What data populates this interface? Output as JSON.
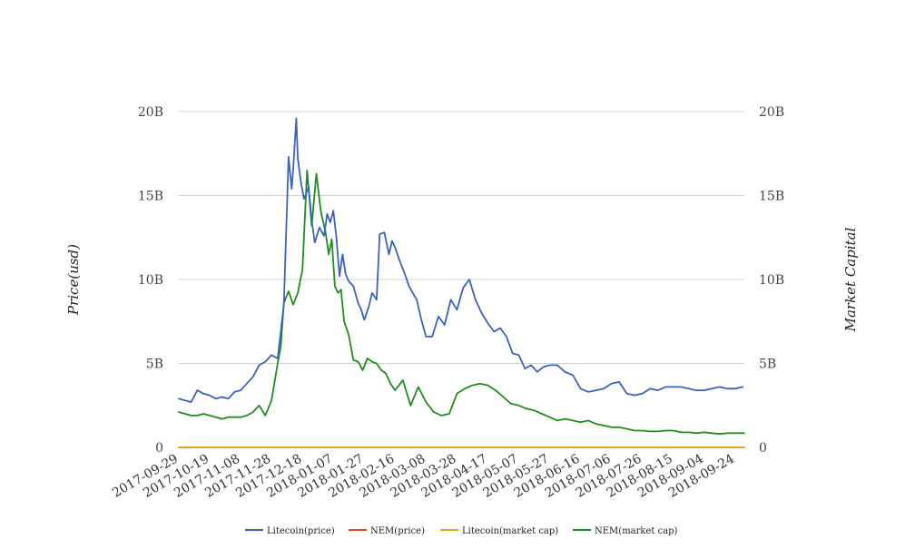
{
  "chart_data": {
    "type": "line",
    "y_axis_left_title": "Price(usd)",
    "y_axis_right_title": "Market Capital",
    "y_ticks": [
      "0",
      "5B",
      "10B",
      "15B",
      "20B"
    ],
    "ylim": [
      0,
      20000000000
    ],
    "x_range": [
      "2017-09-29",
      "2018-09-30"
    ],
    "x_ticks": [
      "2017-09-29",
      "2017-10-19",
      "2017-11-08",
      "2017-11-28",
      "2017-12-18",
      "2018-01-07",
      "2018-01-27",
      "2018-02-16",
      "2018-03-08",
      "2018-03-28",
      "2018-04-17",
      "2018-05-07",
      "2018-05-27",
      "2018-06-16",
      "2018-07-06",
      "2018-07-26",
      "2018-08-15",
      "2018-09-04",
      "2018-09-24"
    ],
    "grid": true,
    "legend_position": "bottom",
    "series": [
      {
        "name": "Litecoin(price)",
        "color": "#3a63c0",
        "axis": "left",
        "x": [
          "2017-09-29",
          "2017-10-03",
          "2017-10-07",
          "2017-10-11",
          "2017-10-15",
          "2017-10-19",
          "2017-10-23",
          "2017-10-27",
          "2017-10-31",
          "2017-11-04",
          "2017-11-08",
          "2017-11-12",
          "2017-11-16",
          "2017-11-20",
          "2017-11-24",
          "2017-11-28",
          "2017-12-02",
          "2017-12-06",
          "2017-12-09",
          "2017-12-11",
          "2017-12-12",
          "2017-12-14",
          "2017-12-15",
          "2017-12-17",
          "2017-12-19",
          "2017-12-22",
          "2017-12-24",
          "2017-12-26",
          "2017-12-29",
          "2018-01-01",
          "2018-01-03",
          "2018-01-05",
          "2018-01-07",
          "2018-01-09",
          "2018-01-11",
          "2018-01-13",
          "2018-01-15",
          "2018-01-17",
          "2018-01-20",
          "2018-01-23",
          "2018-01-25",
          "2018-01-27",
          "2018-01-30",
          "2018-02-01",
          "2018-02-04",
          "2018-02-06",
          "2018-02-09",
          "2018-02-12",
          "2018-02-14",
          "2018-02-16",
          "2018-02-19",
          "2018-02-22",
          "2018-02-25",
          "2018-02-28",
          "2018-03-02",
          "2018-03-05",
          "2018-03-08",
          "2018-03-12",
          "2018-03-16",
          "2018-03-20",
          "2018-03-24",
          "2018-03-28",
          "2018-04-01",
          "2018-04-05",
          "2018-04-09",
          "2018-04-13",
          "2018-04-17",
          "2018-04-21",
          "2018-04-25",
          "2018-04-29",
          "2018-05-03",
          "2018-05-07",
          "2018-05-11",
          "2018-05-15",
          "2018-05-19",
          "2018-05-23",
          "2018-05-27",
          "2018-06-01",
          "2018-06-06",
          "2018-06-11",
          "2018-06-16",
          "2018-06-21",
          "2018-06-26",
          "2018-07-01",
          "2018-07-06",
          "2018-07-11",
          "2018-07-16",
          "2018-07-21",
          "2018-07-26",
          "2018-07-31",
          "2018-08-05",
          "2018-08-10",
          "2018-08-15",
          "2018-08-20",
          "2018-08-25",
          "2018-08-30",
          "2018-09-04",
          "2018-09-09",
          "2018-09-14",
          "2018-09-19",
          "2018-09-24",
          "2018-09-29"
        ],
        "values": [
          2.9,
          2.8,
          2.7,
          3.4,
          3.2,
          3.1,
          2.9,
          3.0,
          2.9,
          3.3,
          3.4,
          3.8,
          4.2,
          4.9,
          5.1,
          5.5,
          5.3,
          8.5,
          17.3,
          15.4,
          16.6,
          19.6,
          17.2,
          15.8,
          14.8,
          15.5,
          13.5,
          12.2,
          13.1,
          12.6,
          13.9,
          13.4,
          14.1,
          12.5,
          10.2,
          11.5,
          10.3,
          9.9,
          9.6,
          8.6,
          8.2,
          7.6,
          8.4,
          9.2,
          8.8,
          12.7,
          12.8,
          11.5,
          12.3,
          11.9,
          11.1,
          10.4,
          9.6,
          9.1,
          8.8,
          7.6,
          6.6,
          6.6,
          7.8,
          7.3,
          8.8,
          8.2,
          9.5,
          10.0,
          8.8,
          8.0,
          7.4,
          6.9,
          7.1,
          6.6,
          5.6,
          5.5,
          4.7,
          4.9,
          4.5,
          4.8,
          4.9,
          4.9,
          4.5,
          4.3,
          3.5,
          3.3,
          3.4,
          3.5,
          3.8,
          3.9,
          3.2,
          3.1,
          3.2,
          3.5,
          3.4,
          3.6,
          3.6,
          3.6,
          3.5,
          3.4,
          3.4,
          3.5,
          3.6,
          3.5,
          3.5,
          3.6
        ]
      },
      {
        "name": "NEM(price)",
        "color": "#d9481c",
        "axis": "left",
        "x": [
          "2017-09-29",
          "2018-09-30"
        ],
        "values": [
          0.0,
          0.0
        ]
      },
      {
        "name": "Litecoin(market cap)",
        "color": "#e8a80c",
        "axis": "right",
        "x": [
          "2017-09-29",
          "2018-09-30"
        ],
        "values": [
          0.0,
          0.0
        ]
      },
      {
        "name": "NEM(market cap)",
        "color": "#1f8e1f",
        "axis": "right",
        "x": [
          "2017-09-29",
          "2017-10-03",
          "2017-10-07",
          "2017-10-11",
          "2017-10-15",
          "2017-10-19",
          "2017-10-23",
          "2017-10-27",
          "2017-10-31",
          "2017-11-04",
          "2017-11-08",
          "2017-11-12",
          "2017-11-16",
          "2017-11-20",
          "2017-11-24",
          "2017-11-28",
          "2017-12-02",
          "2017-12-04",
          "2017-12-06",
          "2017-12-09",
          "2017-12-12",
          "2017-12-15",
          "2017-12-18",
          "2017-12-21",
          "2017-12-24",
          "2017-12-27",
          "2017-12-30",
          "2018-01-02",
          "2018-01-04",
          "2018-01-06",
          "2018-01-08",
          "2018-01-10",
          "2018-01-12",
          "2018-01-14",
          "2018-01-17",
          "2018-01-20",
          "2018-01-23",
          "2018-01-26",
          "2018-01-29",
          "2018-02-01",
          "2018-02-04",
          "2018-02-07",
          "2018-02-10",
          "2018-02-13",
          "2018-02-16",
          "2018-02-21",
          "2018-02-26",
          "2018-03-03",
          "2018-03-08",
          "2018-03-13",
          "2018-03-18",
          "2018-03-23",
          "2018-03-28",
          "2018-04-02",
          "2018-04-07",
          "2018-04-12",
          "2018-04-17",
          "2018-04-22",
          "2018-04-27",
          "2018-05-02",
          "2018-05-07",
          "2018-05-12",
          "2018-05-17",
          "2018-05-22",
          "2018-05-27",
          "2018-06-01",
          "2018-06-06",
          "2018-06-11",
          "2018-06-16",
          "2018-06-21",
          "2018-06-26",
          "2018-07-01",
          "2018-07-06",
          "2018-07-11",
          "2018-07-16",
          "2018-07-21",
          "2018-07-26",
          "2018-07-31",
          "2018-08-05",
          "2018-08-10",
          "2018-08-15",
          "2018-08-20",
          "2018-08-25",
          "2018-08-30",
          "2018-09-04",
          "2018-09-09",
          "2018-09-14",
          "2018-09-19",
          "2018-09-24",
          "2018-09-30"
        ],
        "values": [
          2.1,
          2.0,
          1.9,
          1.9,
          2.0,
          1.9,
          1.8,
          1.7,
          1.8,
          1.8,
          1.8,
          1.9,
          2.1,
          2.5,
          1.9,
          2.8,
          5.0,
          6.0,
          8.6,
          9.3,
          8.5,
          9.2,
          10.6,
          16.5,
          13.2,
          16.3,
          14.0,
          12.8,
          11.5,
          12.4,
          9.6,
          9.2,
          9.4,
          7.5,
          6.7,
          5.2,
          5.1,
          4.6,
          5.3,
          5.1,
          5.0,
          4.6,
          4.4,
          3.8,
          3.4,
          4.0,
          2.5,
          3.6,
          2.7,
          2.1,
          1.9,
          2.0,
          3.2,
          3.5,
          3.7,
          3.8,
          3.7,
          3.4,
          3.0,
          2.6,
          2.5,
          2.3,
          2.2,
          2.0,
          1.8,
          1.6,
          1.7,
          1.6,
          1.5,
          1.6,
          1.4,
          1.3,
          1.2,
          1.2,
          1.1,
          1.0,
          1.0,
          0.95,
          0.95,
          1.0,
          1.0,
          0.9,
          0.9,
          0.85,
          0.9,
          0.85,
          0.8,
          0.85,
          0.85,
          0.85
        ]
      }
    ]
  }
}
